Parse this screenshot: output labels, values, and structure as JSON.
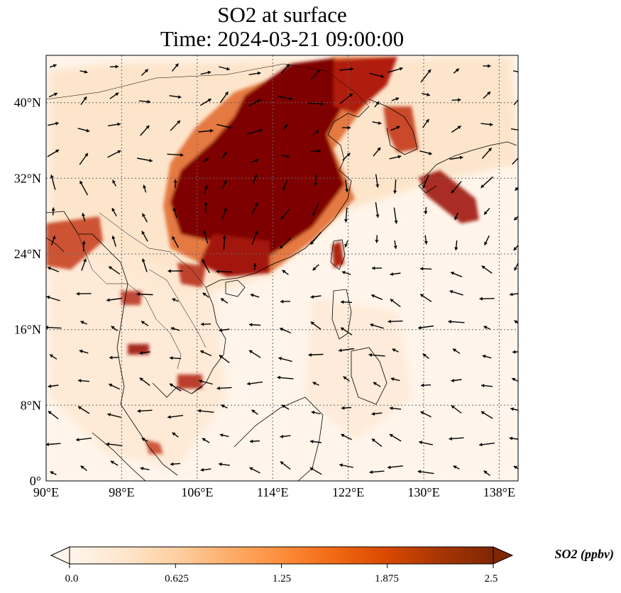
{
  "title": {
    "line1": "SO2 at surface",
    "line2": "Time: 2024-03-21 09:00:00"
  },
  "map": {
    "lon_range": [
      90,
      140
    ],
    "lat_range": [
      0,
      45
    ],
    "lon_ticks": [
      {
        "value": 90,
        "label": "90°E"
      },
      {
        "value": 98,
        "label": "98°E"
      },
      {
        "value": 106,
        "label": "106°E"
      },
      {
        "value": 114,
        "label": "114°E"
      },
      {
        "value": 122,
        "label": "122°E"
      },
      {
        "value": 130,
        "label": "130°E"
      },
      {
        "value": 138,
        "label": "138°E"
      }
    ],
    "lat_ticks": [
      {
        "value": 0,
        "label": "0°"
      },
      {
        "value": 8,
        "label": "8°N"
      },
      {
        "value": 16,
        "label": "16°N"
      },
      {
        "value": 24,
        "label": "24°N"
      },
      {
        "value": 32,
        "label": "32°N"
      },
      {
        "value": 40,
        "label": "40°N"
      }
    ],
    "gridlines": true
  },
  "colorbar": {
    "label": "SO2 (ppbv)",
    "min": 0,
    "max": 2.5,
    "ticks": [
      "0.0",
      "0.625",
      "1.25",
      "1.875",
      "2.5"
    ],
    "colormap": [
      "#fff5eb",
      "#fee6ce",
      "#fdd0a2",
      "#fdae6b",
      "#fd8d3c",
      "#f16913",
      "#d94801",
      "#a63603",
      "#7f2704"
    ],
    "extend": "both"
  }
}
